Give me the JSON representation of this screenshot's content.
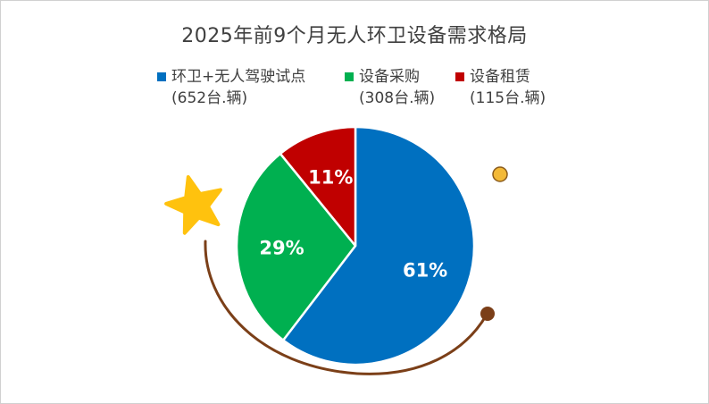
{
  "chart_data": {
    "type": "pie",
    "title": "2025年前9个月无人环卫设备需求格局",
    "slices": [
      {
        "name": "环卫+无人驾驶试点",
        "count_label": "(652台.辆)",
        "value": 61,
        "label": "61%",
        "color": "#0070C0"
      },
      {
        "name": "设备采购",
        "count_label": "(308台.辆)",
        "value": 29,
        "label": "29%",
        "color": "#00B050"
      },
      {
        "name": "设备租赁",
        "count_label": "(115台.辆)",
        "value": 11,
        "label": "11%",
        "color": "#C00000"
      }
    ],
    "legend_position": "top"
  },
  "decor": {
    "star_color": "#FFC20E",
    "arc_color": "#7B3F18",
    "dot_color": "#F3B937"
  }
}
